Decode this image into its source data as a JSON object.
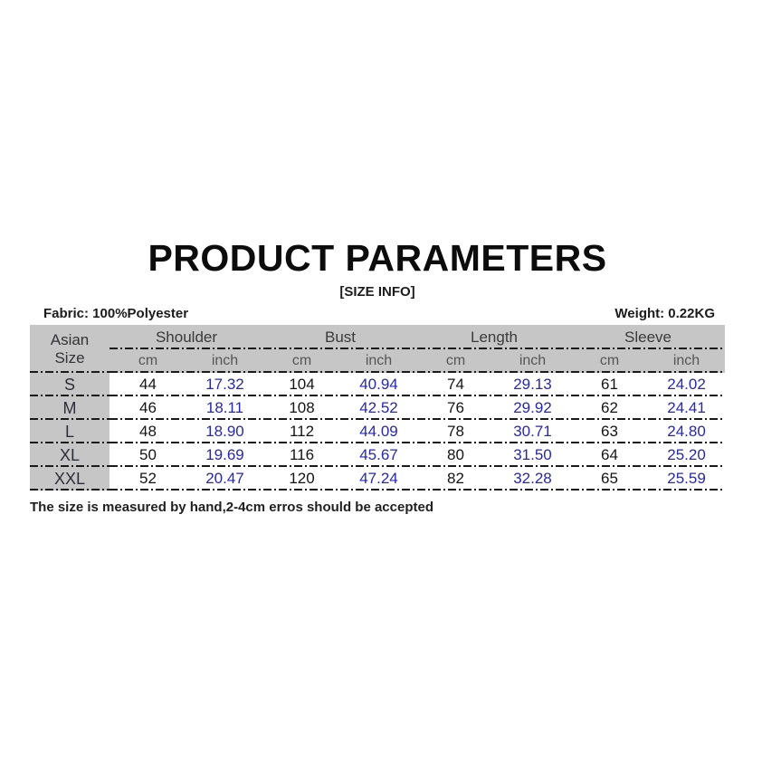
{
  "header": {
    "title": "PRODUCT PARAMETERS",
    "subtitle": "[SIZE INFO]",
    "fabric": "Fabric:  100%Polyester",
    "weight": "Weight: 0.22KG",
    "note": "The size is measured by hand,2-4cm erros should be accepted"
  },
  "chart_data": {
    "type": "table",
    "title": "PRODUCT PARAMETERS",
    "subtitle": "[SIZE INFO]",
    "corner_header": {
      "line1": "Asian",
      "line2": "Size"
    },
    "groups": [
      "Shoulder",
      "Bust",
      "Length",
      "Sleeve"
    ],
    "unit_row": [
      "cm",
      "inch",
      "cm",
      "inch",
      "cm",
      "inch",
      "cm",
      "inch"
    ],
    "rows": [
      {
        "size": "S",
        "values": [
          "44",
          "17.32",
          "104",
          "40.94",
          "74",
          "29.13",
          "61",
          "24.02"
        ]
      },
      {
        "size": "M",
        "values": [
          "46",
          "18.11",
          "108",
          "42.52",
          "76",
          "29.92",
          "62",
          "24.41"
        ]
      },
      {
        "size": "L",
        "values": [
          "48",
          "18.90",
          "112",
          "44.09",
          "78",
          "30.71",
          "63",
          "24.80"
        ]
      },
      {
        "size": "XL",
        "values": [
          "50",
          "19.69",
          "116",
          "45.67",
          "80",
          "31.50",
          "64",
          "25.20"
        ]
      },
      {
        "size": "XXL",
        "values": [
          "52",
          "20.47",
          "120",
          "47.24",
          "82",
          "32.28",
          "65",
          "25.59"
        ]
      }
    ]
  },
  "colors": {
    "header-bg": "#c6c6c6",
    "line-color": "#1a1a1a",
    "inch-text": "#2628ae",
    "value-text": "#141414",
    "muted-text": "#565656"
  }
}
